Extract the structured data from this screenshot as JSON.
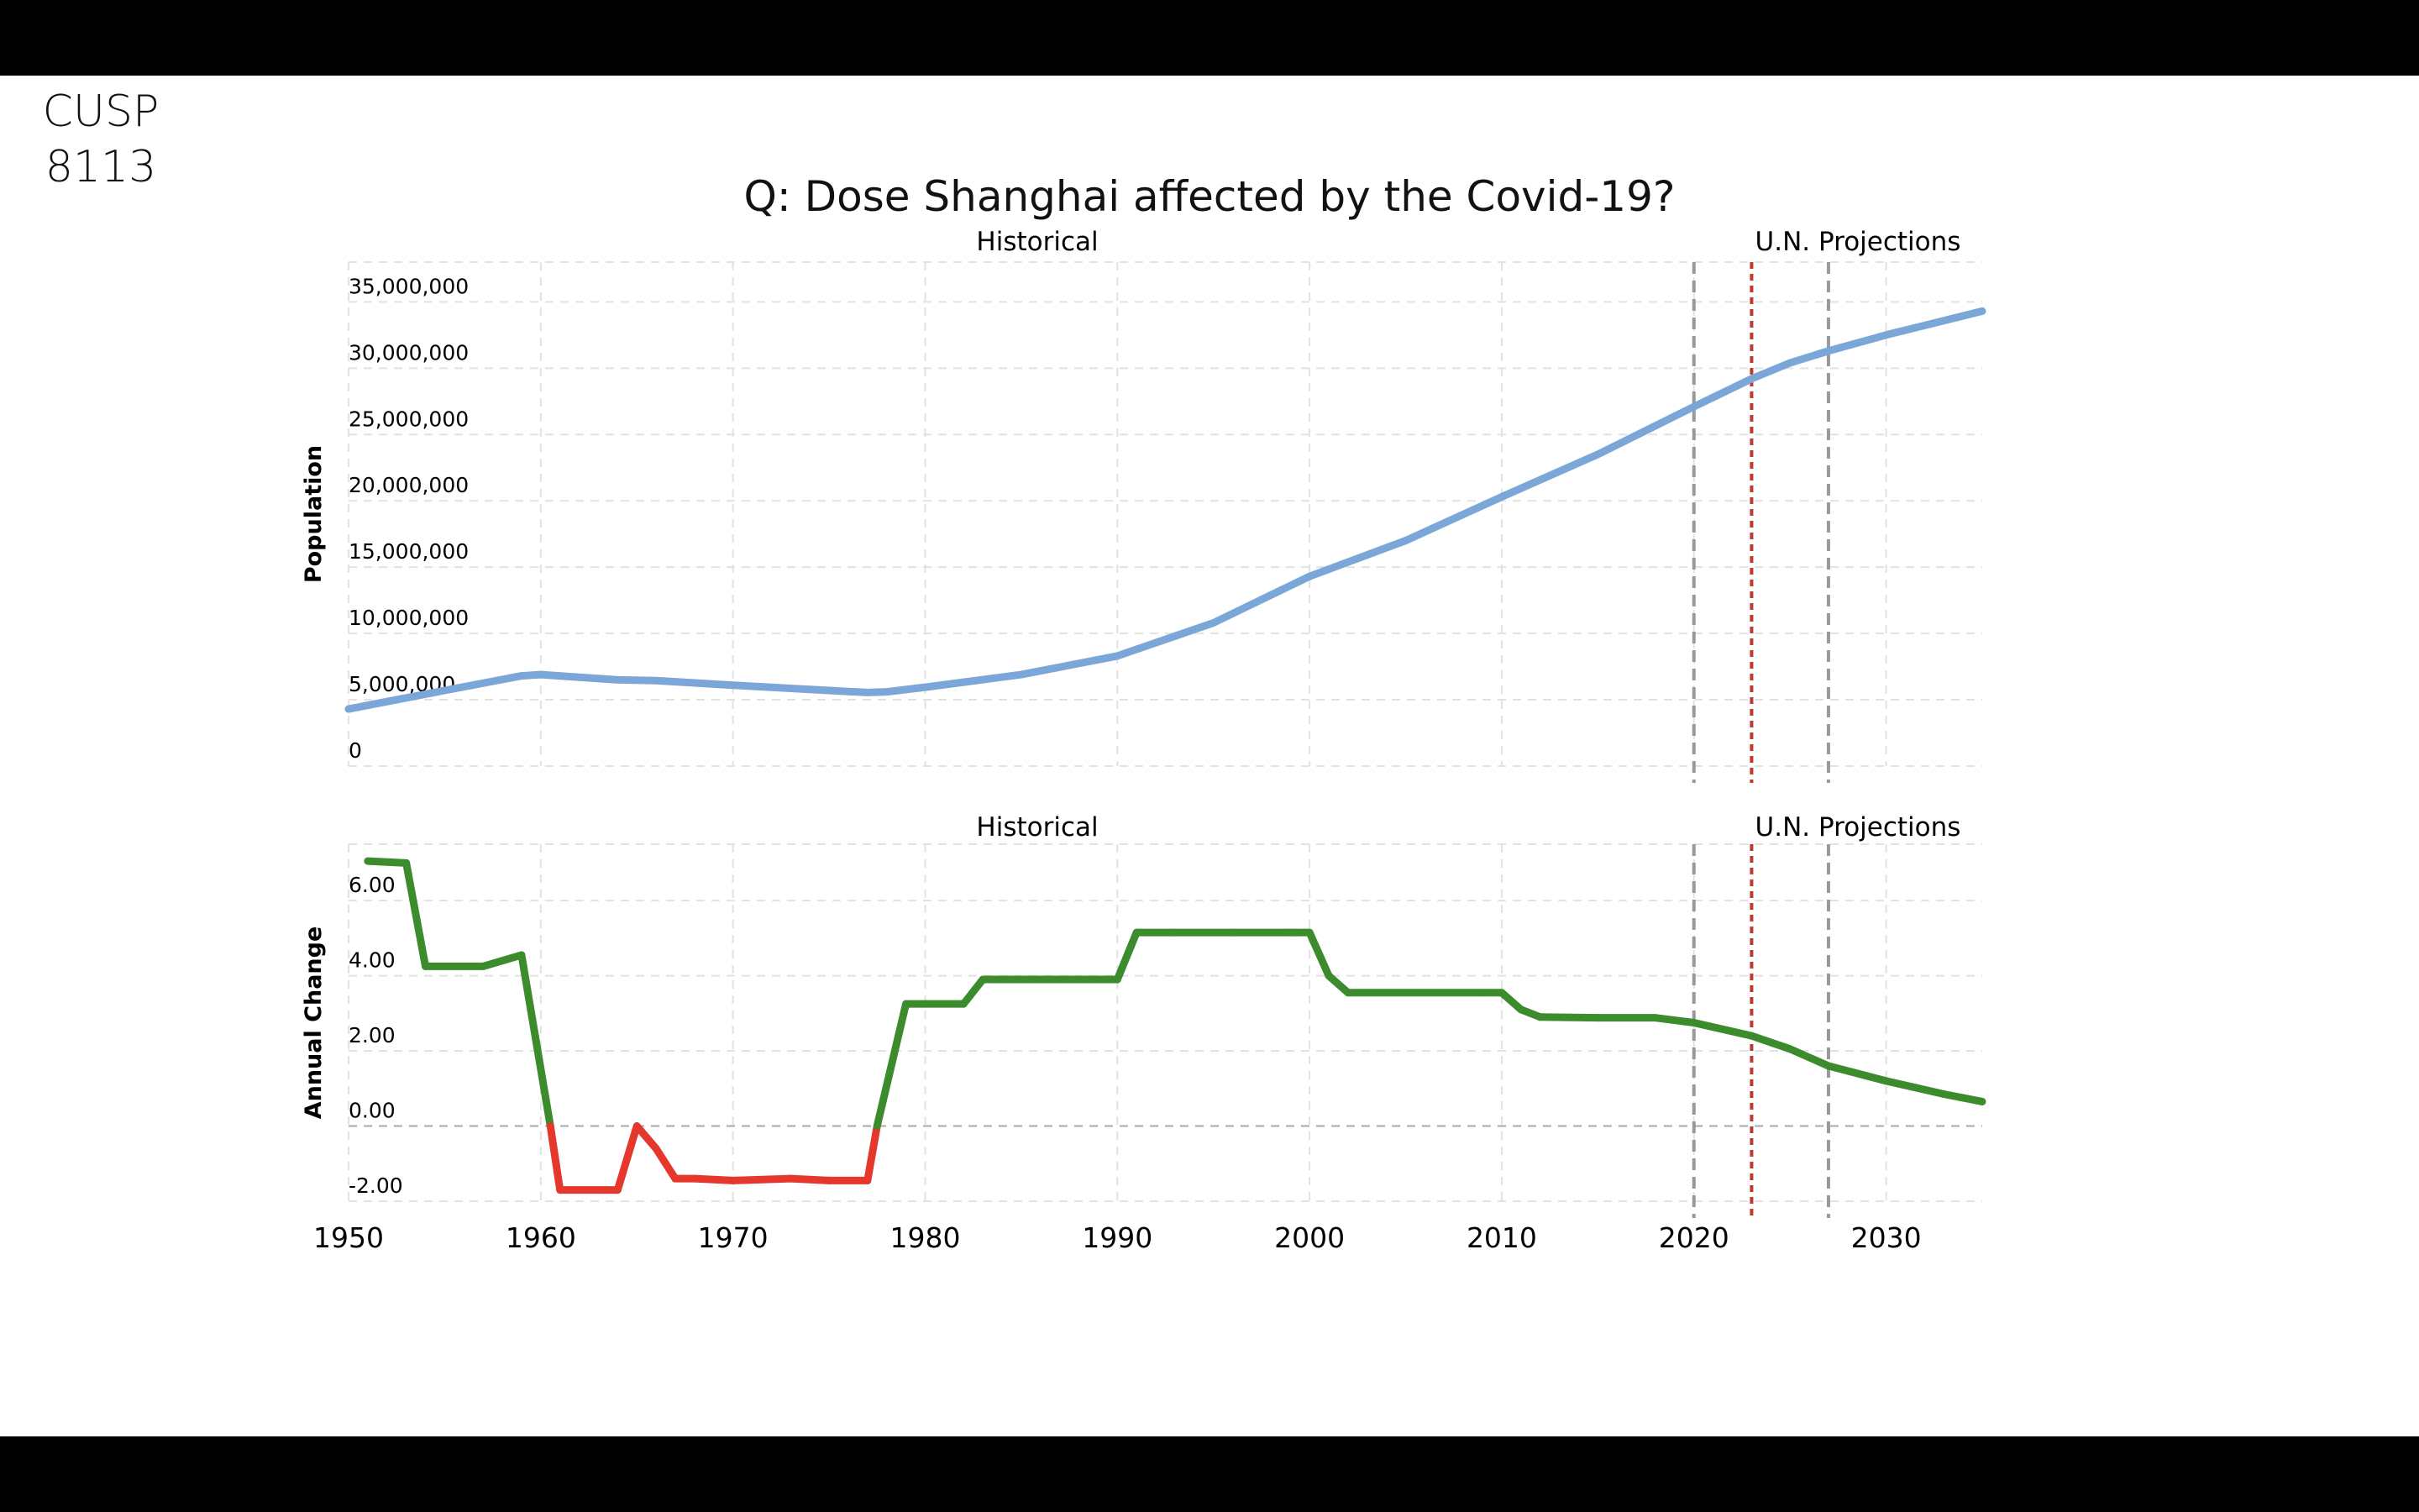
{
  "slide": {
    "course_line1": "CUSP",
    "course_line2": "8113",
    "title": "Q: Dose Shanghai affected by the Covid-19?"
  },
  "chart_data": [
    {
      "type": "line",
      "ylabel": "Population",
      "xlim": [
        1950,
        2035
      ],
      "ylim": [
        0,
        38000000
      ],
      "yticks": [
        0,
        5000000,
        10000000,
        15000000,
        20000000,
        25000000,
        30000000,
        35000000
      ],
      "ytick_labels": [
        "0",
        "5,000,000",
        "10,000,000",
        "15,000,000",
        "20,000,000",
        "25,000,000",
        "30,000,000",
        "35,000,000"
      ],
      "region_labels": [
        "Historical",
        "U.N. Projections"
      ],
      "vlines": [
        {
          "x": 2020,
          "color": "#999999",
          "style": "dashed"
        },
        {
          "x": 2023,
          "color": "#c0392b",
          "style": "dotted"
        },
        {
          "x": 2027,
          "color": "#999999",
          "style": "dashed"
        }
      ],
      "series": [
        {
          "color": "#7aa7d8",
          "points": [
            [
              1950,
              4300000
            ],
            [
              1955,
              5700000
            ],
            [
              1959,
              6800000
            ],
            [
              1960,
              6900000
            ],
            [
              1964,
              6500000
            ],
            [
              1966,
              6450000
            ],
            [
              1970,
              6100000
            ],
            [
              1975,
              5700000
            ],
            [
              1977,
              5550000
            ],
            [
              1978,
              5600000
            ],
            [
              1980,
              5950000
            ],
            [
              1985,
              6900000
            ],
            [
              1990,
              8300000
            ],
            [
              1995,
              10800000
            ],
            [
              2000,
              14300000
            ],
            [
              2005,
              17000000
            ],
            [
              2010,
              20300000
            ],
            [
              2015,
              23500000
            ],
            [
              2020,
              27100000
            ],
            [
              2023,
              29200000
            ],
            [
              2025,
              30400000
            ],
            [
              2027,
              31300000
            ],
            [
              2030,
              32500000
            ],
            [
              2035,
              34300000
            ]
          ]
        }
      ]
    },
    {
      "type": "line",
      "ylabel": "Annual Change",
      "xlim": [
        1950,
        2035
      ],
      "ylim": [
        -2.0,
        7.5
      ],
      "yticks": [
        -2,
        0,
        2,
        4,
        6
      ],
      "ytick_labels": [
        "-2.00",
        "0.00",
        "2.00",
        "4.00",
        "6.00"
      ],
      "xticks": [
        1950,
        1960,
        1970,
        1980,
        1990,
        2000,
        2010,
        2020,
        2030
      ],
      "xtick_labels": [
        "1950",
        "1960",
        "1970",
        "1980",
        "1990",
        "2000",
        "2010",
        "2020",
        "2030"
      ],
      "region_labels": [
        "Historical",
        "U.N. Projections"
      ],
      "vlines": [
        {
          "x": 2020,
          "color": "#999999",
          "style": "dashed"
        },
        {
          "x": 2023,
          "color": "#c0392b",
          "style": "dotted"
        },
        {
          "x": 2027,
          "color": "#999999",
          "style": "dashed"
        }
      ],
      "positive_color": "#3c8c2e",
      "negative_color": "#e5372b",
      "series": [
        {
          "points": [
            [
              1951,
              7.05
            ],
            [
              1953,
              7.0
            ],
            [
              1954,
              4.25
            ],
            [
              1957,
              4.25
            ],
            [
              1959,
              4.55
            ],
            [
              1960.5,
              0.0
            ],
            [
              1961,
              -1.7
            ],
            [
              1963,
              -1.7
            ],
            [
              1964,
              -1.7
            ],
            [
              1965,
              0.0
            ],
            [
              1966,
              -0.6
            ],
            [
              1967,
              -1.4
            ],
            [
              1968,
              -1.4
            ],
            [
              1970,
              -1.45
            ],
            [
              1973,
              -1.4
            ],
            [
              1975,
              -1.45
            ],
            [
              1977,
              -1.45
            ],
            [
              1977.5,
              0.0
            ],
            [
              1979,
              3.25
            ],
            [
              1980,
              3.25
            ],
            [
              1982,
              3.25
            ],
            [
              1983,
              3.9
            ],
            [
              1989,
              3.9
            ],
            [
              1990,
              3.9
            ],
            [
              1991,
              5.15
            ],
            [
              1993,
              5.15
            ],
            [
              1996,
              5.15
            ],
            [
              1999,
              5.15
            ],
            [
              2000,
              5.15
            ],
            [
              2001,
              4.0
            ],
            [
              2002,
              3.55
            ],
            [
              2009,
              3.55
            ],
            [
              2010,
              3.55
            ],
            [
              2011,
              3.1
            ],
            [
              2012,
              2.9
            ],
            [
              2015,
              2.88
            ],
            [
              2018,
              2.88
            ],
            [
              2020,
              2.75
            ],
            [
              2023,
              2.4
            ],
            [
              2025,
              2.05
            ],
            [
              2027,
              1.6
            ],
            [
              2030,
              1.2
            ],
            [
              2033,
              0.85
            ],
            [
              2035,
              0.65
            ]
          ]
        }
      ]
    }
  ]
}
